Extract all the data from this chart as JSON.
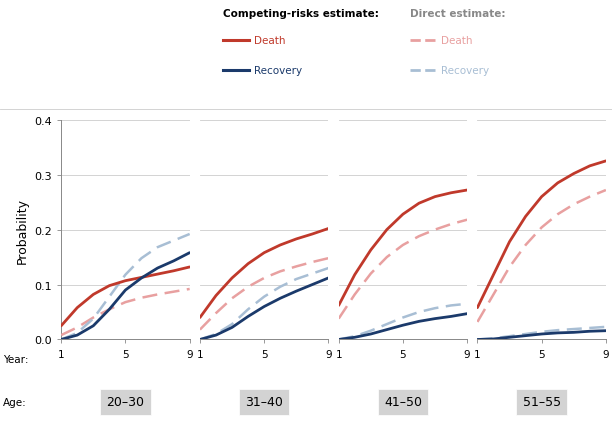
{
  "ylabel": "Probability",
  "ylim": [
    0,
    0.4
  ],
  "yticks": [
    0.0,
    0.1,
    0.2,
    0.3,
    0.4
  ],
  "xticks": [
    1,
    5,
    9
  ],
  "age_groups": [
    "20–30",
    "31–40",
    "41–50",
    "51–55"
  ],
  "age_keys": [
    "20-30",
    "31-40",
    "41-50",
    "51-55"
  ],
  "colors": {
    "death_cr": "#c0392b",
    "recovery_cr": "#1b3a6b",
    "death_direct": "#e8a0a0",
    "recovery_direct": "#a8bed4"
  },
  "groups": {
    "20-30": {
      "years": [
        1,
        2,
        3,
        4,
        5,
        6,
        7,
        8,
        9
      ],
      "death_cr": [
        0.025,
        0.058,
        0.082,
        0.098,
        0.107,
        0.113,
        0.119,
        0.125,
        0.132
      ],
      "recovery_cr": [
        0.0,
        0.008,
        0.025,
        0.055,
        0.09,
        0.112,
        0.13,
        0.143,
        0.158
      ],
      "death_direct": [
        0.008,
        0.022,
        0.04,
        0.055,
        0.068,
        0.076,
        0.082,
        0.087,
        0.092
      ],
      "recovery_direct": [
        0.0,
        0.012,
        0.038,
        0.078,
        0.118,
        0.148,
        0.168,
        0.18,
        0.192
      ]
    },
    "31-40": {
      "years": [
        1,
        2,
        3,
        4,
        5,
        6,
        7,
        8,
        9
      ],
      "death_cr": [
        0.04,
        0.08,
        0.112,
        0.138,
        0.158,
        0.172,
        0.183,
        0.192,
        0.202
      ],
      "recovery_cr": [
        0.0,
        0.008,
        0.022,
        0.042,
        0.06,
        0.075,
        0.088,
        0.1,
        0.112
      ],
      "death_direct": [
        0.018,
        0.048,
        0.075,
        0.096,
        0.112,
        0.124,
        0.133,
        0.141,
        0.148
      ],
      "recovery_direct": [
        0.0,
        0.01,
        0.028,
        0.055,
        0.078,
        0.096,
        0.11,
        0.12,
        0.13
      ]
    },
    "41-50": {
      "years": [
        1,
        2,
        3,
        4,
        5,
        6,
        7,
        8,
        9
      ],
      "death_cr": [
        0.062,
        0.118,
        0.163,
        0.2,
        0.228,
        0.248,
        0.26,
        0.267,
        0.272
      ],
      "recovery_cr": [
        0.0,
        0.004,
        0.01,
        0.018,
        0.026,
        0.033,
        0.038,
        0.042,
        0.047
      ],
      "death_direct": [
        0.038,
        0.082,
        0.12,
        0.15,
        0.172,
        0.188,
        0.2,
        0.21,
        0.218
      ],
      "recovery_direct": [
        0.0,
        0.006,
        0.016,
        0.028,
        0.04,
        0.05,
        0.057,
        0.062,
        0.065
      ]
    },
    "51-55": {
      "years": [
        1,
        2,
        3,
        4,
        5,
        6,
        7,
        8,
        9
      ],
      "death_cr": [
        0.058,
        0.118,
        0.178,
        0.224,
        0.26,
        0.285,
        0.302,
        0.316,
        0.325
      ],
      "recovery_cr": [
        0.0,
        0.001,
        0.004,
        0.007,
        0.01,
        0.012,
        0.013,
        0.015,
        0.016
      ],
      "death_direct": [
        0.032,
        0.082,
        0.132,
        0.172,
        0.204,
        0.228,
        0.246,
        0.26,
        0.272
      ],
      "recovery_direct": [
        0.0,
        0.002,
        0.006,
        0.01,
        0.014,
        0.017,
        0.019,
        0.021,
        0.023
      ]
    }
  },
  "background_color": "#ffffff",
  "label_bg": "#d3d3d3",
  "grid_color": "#cccccc",
  "separator_color": "#cccccc"
}
